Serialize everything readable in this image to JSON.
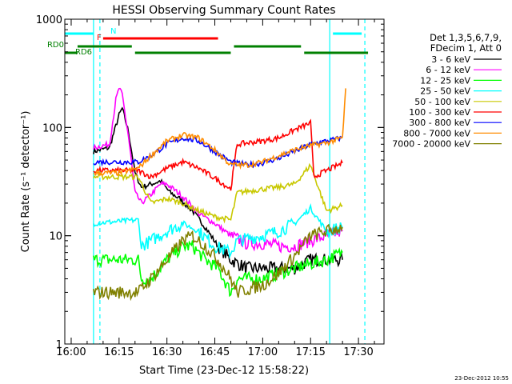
{
  "chart_data": {
    "type": "line",
    "title": "HESSI Observing Summary Count Rates",
    "xlabel": "Start Time (23-Dec-12 15:58:22)",
    "ylabel": "Count Rate (s⁻¹ detector⁻¹)",
    "yscale": "log",
    "ylim": [
      1,
      1000
    ],
    "xlim": [
      "15:58",
      "17:38"
    ],
    "x_tick_labels": [
      "16:00",
      "16:15",
      "16:30",
      "16:45",
      "17:00",
      "17:15",
      "17:30"
    ],
    "y_tick_labels": [
      "1",
      "10",
      "100",
      "1000"
    ],
    "grid": false,
    "legend_position": "right",
    "legend_header": [
      "Det 1,3,5,6,7,9,",
      "FDecim 1, Att 0"
    ],
    "series": [
      {
        "name": "3 - 6 keV",
        "color": "#000000",
        "points": [
          [
            "16:07",
            60
          ],
          [
            "16:12",
            65
          ],
          [
            "16:15",
            130
          ],
          [
            "16:16",
            150
          ],
          [
            "16:18",
            90
          ],
          [
            "16:20",
            38
          ],
          [
            "16:22",
            28
          ],
          [
            "16:25",
            30
          ],
          [
            "16:28",
            32
          ],
          [
            "16:31",
            25
          ],
          [
            "16:34",
            22
          ],
          [
            "16:38",
            17
          ],
          [
            "16:42",
            12
          ],
          [
            "16:46",
            8
          ],
          [
            "16:50",
            6
          ],
          [
            "16:55",
            5
          ],
          [
            "17:00",
            5
          ],
          [
            "17:05",
            5
          ],
          [
            "17:10",
            5
          ],
          [
            "17:15",
            6
          ],
          [
            "17:20",
            6
          ],
          [
            "17:25",
            6
          ]
        ]
      },
      {
        "name": "6 - 12 keV",
        "color": "#ff00ff",
        "points": [
          [
            "16:07",
            65
          ],
          [
            "16:12",
            70
          ],
          [
            "16:14",
            180
          ],
          [
            "16:15",
            230
          ],
          [
            "16:16",
            200
          ],
          [
            "16:18",
            80
          ],
          [
            "16:20",
            25
          ],
          [
            "16:22",
            20
          ],
          [
            "16:25",
            24
          ],
          [
            "16:28",
            30
          ],
          [
            "16:30",
            30
          ],
          [
            "16:32",
            27
          ],
          [
            "16:35",
            23
          ],
          [
            "16:40",
            16
          ],
          [
            "16:45",
            13
          ],
          [
            "16:50",
            10
          ],
          [
            "16:55",
            8.5
          ],
          [
            "17:00",
            8.5
          ],
          [
            "17:05",
            8
          ],
          [
            "17:10",
            8
          ],
          [
            "17:15",
            9
          ],
          [
            "17:20",
            10
          ],
          [
            "17:25",
            11
          ]
        ]
      },
      {
        "name": "12 - 25 keV",
        "color": "#00ff00",
        "points": [
          [
            "16:07",
            6
          ],
          [
            "16:21",
            6
          ],
          [
            "16:22",
            4
          ],
          [
            "16:25",
            4
          ],
          [
            "16:30",
            6
          ],
          [
            "16:35",
            8
          ],
          [
            "16:38",
            8
          ],
          [
            "16:42",
            6
          ],
          [
            "16:46",
            5
          ],
          [
            "16:50",
            3
          ],
          [
            "16:52",
            4
          ],
          [
            "16:55",
            4
          ],
          [
            "17:00",
            4
          ],
          [
            "17:05",
            4.5
          ],
          [
            "17:10",
            5
          ],
          [
            "17:15",
            5.5
          ],
          [
            "17:20",
            6
          ],
          [
            "17:25",
            7
          ]
        ]
      },
      {
        "name": "25 - 50 keV",
        "color": "#00ffff",
        "points": [
          [
            "16:07",
            13
          ],
          [
            "16:21",
            14
          ],
          [
            "16:22",
            8
          ],
          [
            "16:25",
            9
          ],
          [
            "16:30",
            11
          ],
          [
            "16:35",
            13
          ],
          [
            "16:40",
            11
          ],
          [
            "16:45",
            8
          ],
          [
            "16:50",
            7
          ],
          [
            "16:52",
            9
          ],
          [
            "17:00",
            10
          ],
          [
            "17:05",
            11
          ],
          [
            "17:10",
            13
          ],
          [
            "17:15",
            18
          ],
          [
            "17:20",
            11
          ],
          [
            "17:25",
            12
          ]
        ]
      },
      {
        "name": "50 - 100 keV",
        "color": "#c8c800",
        "points": [
          [
            "16:07",
            35
          ],
          [
            "16:21",
            35
          ],
          [
            "16:25",
            20
          ],
          [
            "16:30",
            22
          ],
          [
            "16:35",
            20
          ],
          [
            "16:40",
            17
          ],
          [
            "16:45",
            15
          ],
          [
            "16:50",
            14
          ],
          [
            "16:52",
            25
          ],
          [
            "17:00",
            27
          ],
          [
            "17:05",
            28
          ],
          [
            "17:10",
            30
          ],
          [
            "17:15",
            45
          ],
          [
            "17:20",
            17
          ],
          [
            "17:25",
            19
          ]
        ]
      },
      {
        "name": "100 - 300 keV",
        "color": "#ff0000",
        "points": [
          [
            "16:07",
            40
          ],
          [
            "16:21",
            40
          ],
          [
            "16:25",
            35
          ],
          [
            "16:30",
            42
          ],
          [
            "16:35",
            48
          ],
          [
            "16:40",
            42
          ],
          [
            "16:45",
            34
          ],
          [
            "16:50",
            27
          ],
          [
            "16:52",
            70
          ],
          [
            "17:00",
            75
          ],
          [
            "17:05",
            80
          ],
          [
            "17:10",
            95
          ],
          [
            "17:15",
            110
          ],
          [
            "17:16",
            35
          ],
          [
            "17:20",
            40
          ],
          [
            "17:25",
            47
          ]
        ]
      },
      {
        "name": "300 - 800 keV",
        "color": "#0000ff",
        "points": [
          [
            "16:07",
            48
          ],
          [
            "16:21",
            48
          ],
          [
            "16:25",
            55
          ],
          [
            "16:30",
            70
          ],
          [
            "16:35",
            80
          ],
          [
            "16:40",
            75
          ],
          [
            "16:45",
            60
          ],
          [
            "16:50",
            48
          ],
          [
            "16:55",
            45
          ],
          [
            "17:00",
            47
          ],
          [
            "17:05",
            52
          ],
          [
            "17:10",
            60
          ],
          [
            "17:15",
            70
          ],
          [
            "17:20",
            75
          ],
          [
            "17:25",
            80
          ]
        ]
      },
      {
        "name": "800 - 7000 keV",
        "color": "#ff8c00",
        "points": [
          [
            "16:07",
            38
          ],
          [
            "16:15",
            38
          ],
          [
            "16:21",
            42
          ],
          [
            "16:25",
            55
          ],
          [
            "16:30",
            75
          ],
          [
            "16:35",
            85
          ],
          [
            "16:40",
            80
          ],
          [
            "16:45",
            62
          ],
          [
            "16:50",
            45
          ],
          [
            "16:55",
            45
          ],
          [
            "17:00",
            48
          ],
          [
            "17:05",
            55
          ],
          [
            "17:10",
            62
          ],
          [
            "17:15",
            68
          ],
          [
            "17:20",
            72
          ],
          [
            "17:25",
            80
          ],
          [
            "17:26",
            230
          ]
        ]
      },
      {
        "name": "7000 - 20000 keV",
        "color": "#808000",
        "points": [
          [
            "16:07",
            3
          ],
          [
            "16:21",
            3
          ],
          [
            "16:25",
            4
          ],
          [
            "16:30",
            6
          ],
          [
            "16:35",
            9
          ],
          [
            "16:38",
            10
          ],
          [
            "16:42",
            8
          ],
          [
            "16:46",
            6
          ],
          [
            "16:50",
            4
          ],
          [
            "16:52",
            3
          ],
          [
            "17:00",
            3.5
          ],
          [
            "17:05",
            4.5
          ],
          [
            "17:10",
            6.5
          ],
          [
            "17:15",
            10
          ],
          [
            "17:20",
            11
          ],
          [
            "17:25",
            12
          ]
        ]
      }
    ],
    "annotations": {
      "spacecraft_night_lines": [
        "16:07",
        "17:21"
      ],
      "night_dashed_lines": [
        "16:09",
        "17:32"
      ],
      "flag_rows": [
        {
          "label": "N",
          "color": "#00ffff",
          "segments": [
            [
              "15:58",
              "16:07"
            ],
            [
              "17:22",
              "17:31"
            ]
          ]
        },
        {
          "label": "F",
          "color": "#ff0000",
          "segments": [
            [
              "16:10",
              "16:46"
            ]
          ]
        },
        {
          "label": "RD0",
          "color": "#008000",
          "segments": [
            [
              "16:02",
              "16:19"
            ],
            [
              "16:51",
              "17:12"
            ]
          ]
        },
        {
          "label": "RD6",
          "color": "#008000",
          "segments": [
            [
              "15:58",
              "16:02"
            ],
            [
              "16:20",
              "16:50"
            ],
            [
              "17:13",
              "17:33"
            ]
          ]
        }
      ]
    }
  },
  "timestamp": "23-Dec-2012 10:55"
}
